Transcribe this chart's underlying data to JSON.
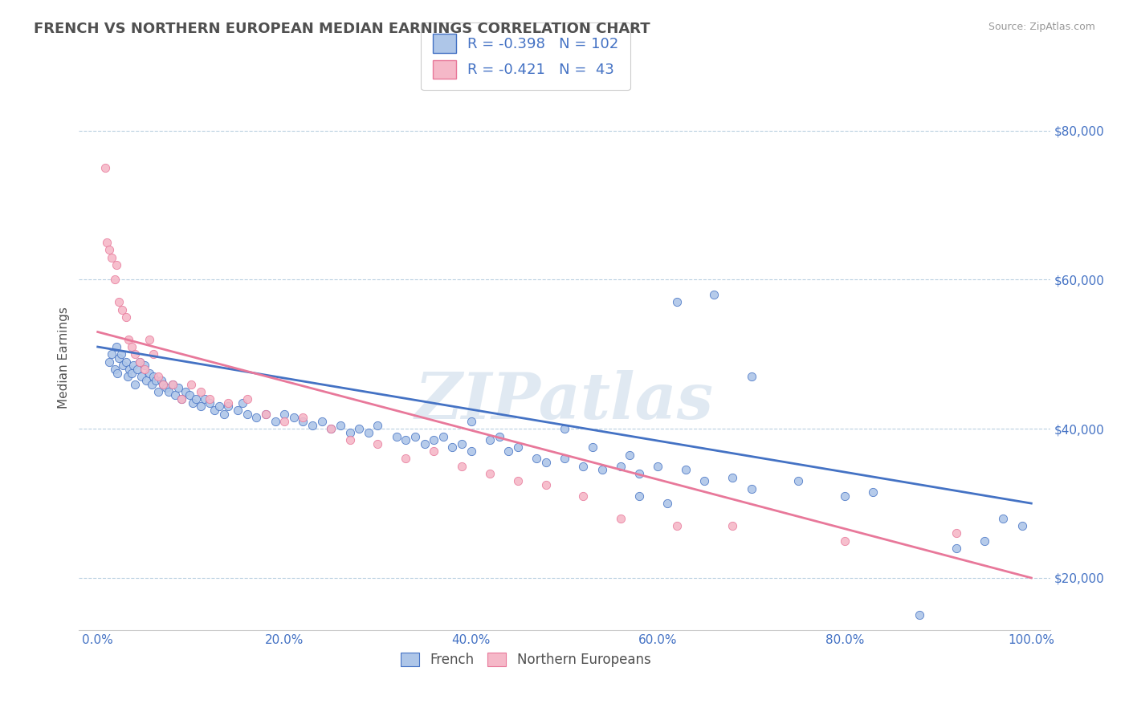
{
  "title": "FRENCH VS NORTHERN EUROPEAN MEDIAN EARNINGS CORRELATION CHART",
  "source_text": "Source: ZipAtlas.com",
  "xlabel": "",
  "ylabel": "Median Earnings",
  "watermark": "ZIPatlas",
  "xlim": [
    -2,
    102
  ],
  "ylim": [
    13000,
    86000
  ],
  "xticks": [
    0.0,
    20.0,
    40.0,
    60.0,
    80.0,
    100.0
  ],
  "xticklabels": [
    "0.0%",
    "20.0%",
    "40.0%",
    "60.0%",
    "80.0%",
    "100.0%"
  ],
  "yticks": [
    20000,
    40000,
    60000,
    80000
  ],
  "yticklabels": [
    "$20,000",
    "$40,000",
    "$60,000",
    "$80,000"
  ],
  "french_color": "#aec6e8",
  "northern_color": "#f5b8c8",
  "french_edge_color": "#4472c4",
  "northern_edge_color": "#e8789a",
  "french_line_color": "#4472c4",
  "northern_line_color": "#e8789a",
  "french_R": "-0.398",
  "french_N": "102",
  "northern_R": "-0.421",
  "northern_N": " 43",
  "legend_labels": [
    "French",
    "Northern Europeans"
  ],
  "background_color": "#ffffff",
  "grid_color": "#b8cfe0",
  "title_color": "#505050",
  "axis_label_color": "#505050",
  "tick_color": "#4472c4",
  "source_color": "#999999",
  "french_scatter_x": [
    1.2,
    1.5,
    1.8,
    2.0,
    2.1,
    2.3,
    2.5,
    2.7,
    3.0,
    3.2,
    3.4,
    3.6,
    3.8,
    4.0,
    4.2,
    4.5,
    4.7,
    5.0,
    5.2,
    5.5,
    5.8,
    6.0,
    6.2,
    6.5,
    6.8,
    7.0,
    7.3,
    7.6,
    8.0,
    8.3,
    8.6,
    9.0,
    9.4,
    9.8,
    10.2,
    10.5,
    11.0,
    11.5,
    12.0,
    12.5,
    13.0,
    13.5,
    14.0,
    15.0,
    15.5,
    16.0,
    17.0,
    18.0,
    19.0,
    20.0,
    21.0,
    22.0,
    23.0,
    24.0,
    25.0,
    26.0,
    27.0,
    28.0,
    29.0,
    30.0,
    32.0,
    33.0,
    34.0,
    35.0,
    36.0,
    37.0,
    38.0,
    39.0,
    40.0,
    42.0,
    43.0,
    44.0,
    45.0,
    47.0,
    48.0,
    50.0,
    52.0,
    54.0,
    56.0,
    57.0,
    58.0,
    60.0,
    63.0,
    65.0,
    68.0,
    70.0,
    75.0,
    80.0,
    83.0,
    88.0,
    92.0,
    95.0,
    97.0,
    99.0,
    62.0,
    66.0,
    70.0,
    40.0,
    50.0,
    53.0,
    58.0,
    61.0
  ],
  "french_scatter_y": [
    49000,
    50000,
    48000,
    51000,
    47500,
    49500,
    50000,
    48500,
    49000,
    47000,
    48000,
    47500,
    48500,
    46000,
    48000,
    49000,
    47000,
    48500,
    46500,
    47500,
    46000,
    47000,
    46500,
    45000,
    46500,
    46000,
    45500,
    45000,
    46000,
    44500,
    45500,
    44000,
    45000,
    44500,
    43500,
    44000,
    43000,
    44000,
    43500,
    42500,
    43000,
    42000,
    43000,
    42500,
    43500,
    42000,
    41500,
    42000,
    41000,
    42000,
    41500,
    41000,
    40500,
    41000,
    40000,
    40500,
    39500,
    40000,
    39500,
    40500,
    39000,
    38500,
    39000,
    38000,
    38500,
    39000,
    37500,
    38000,
    37000,
    38500,
    39000,
    37000,
    37500,
    36000,
    35500,
    36000,
    35000,
    34500,
    35000,
    36500,
    34000,
    35000,
    34500,
    33000,
    33500,
    32000,
    33000,
    31000,
    31500,
    15000,
    24000,
    25000,
    28000,
    27000,
    57000,
    58000,
    47000,
    41000,
    40000,
    37500,
    31000,
    30000
  ],
  "northern_scatter_x": [
    0.8,
    1.0,
    1.2,
    1.5,
    1.8,
    2.0,
    2.3,
    2.6,
    3.0,
    3.3,
    3.6,
    4.0,
    4.5,
    5.0,
    5.5,
    6.0,
    6.5,
    7.0,
    8.0,
    9.0,
    10.0,
    11.0,
    12.0,
    14.0,
    16.0,
    18.0,
    20.0,
    22.0,
    25.0,
    27.0,
    30.0,
    33.0,
    36.0,
    39.0,
    42.0,
    45.0,
    48.0,
    52.0,
    56.0,
    62.0,
    68.0,
    80.0,
    92.0
  ],
  "northern_scatter_y": [
    75000,
    65000,
    64000,
    63000,
    60000,
    62000,
    57000,
    56000,
    55000,
    52000,
    51000,
    50000,
    49000,
    48000,
    52000,
    50000,
    47000,
    46000,
    46000,
    44000,
    46000,
    45000,
    44000,
    43500,
    44000,
    42000,
    41000,
    41500,
    40000,
    38500,
    38000,
    36000,
    37000,
    35000,
    34000,
    33000,
    32500,
    31000,
    28000,
    27000,
    27000,
    25000,
    26000
  ],
  "french_trend_x": [
    0,
    100
  ],
  "french_trend_y": [
    51000,
    30000
  ],
  "northern_trend_x": [
    0,
    100
  ],
  "northern_trend_y": [
    53000,
    20000
  ]
}
